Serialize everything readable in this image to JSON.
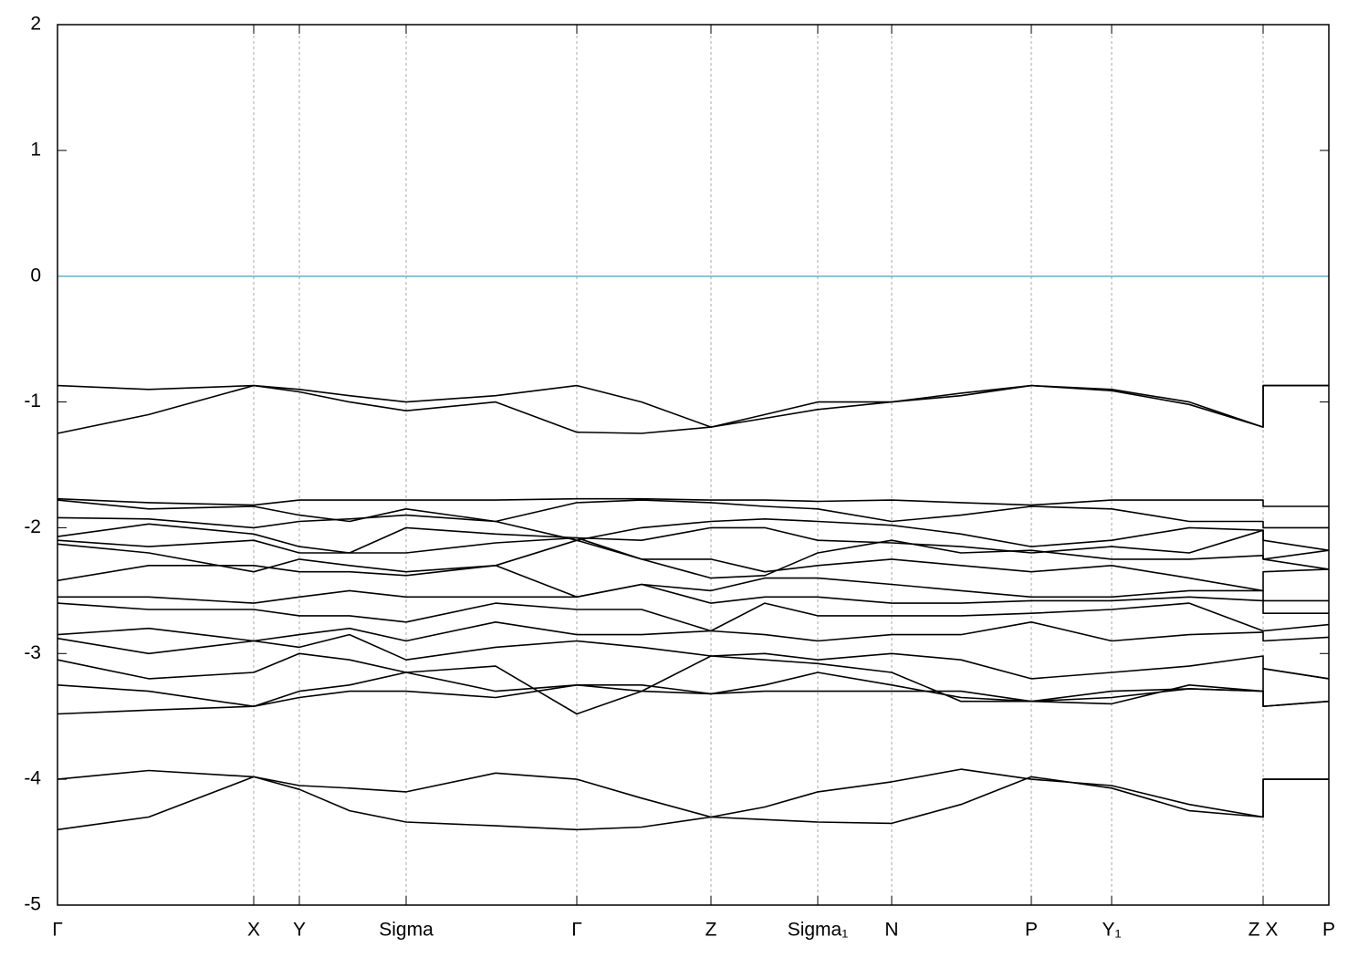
{
  "chart_data": {
    "type": "line",
    "x": [
      0,
      1.0,
      2.15,
      2.65,
      3.2,
      3.82,
      4.8,
      5.69,
      6.4,
      7.16,
      7.75,
      8.33,
      9.14,
      9.9,
      10.67,
      11.55,
      12.4,
      13.21,
      13.21,
      13.93
    ],
    "xlim": [
      0,
      13.93
    ],
    "xticks": [
      {
        "value": 0,
        "label": "Γ"
      },
      {
        "value": 2.15,
        "label": "X"
      },
      {
        "value": 2.65,
        "label": "Y"
      },
      {
        "value": 3.82,
        "label": "Sigma"
      },
      {
        "value": 5.69,
        "label": "Γ"
      },
      {
        "value": 7.16,
        "label": "Z"
      },
      {
        "value": 8.33,
        "label": "Sigma₁"
      },
      {
        "value": 9.14,
        "label": "N"
      },
      {
        "value": 10.67,
        "label": "P"
      },
      {
        "value": 11.55,
        "label": "Y₁"
      },
      {
        "value": 13.21,
        "label": "Z X"
      },
      {
        "value": 13.93,
        "label": "P"
      }
    ],
    "ylim": [
      -5,
      2
    ],
    "yticks": [
      -5,
      -4,
      -3,
      -2,
      -1,
      0,
      1,
      2
    ],
    "grid": true,
    "hline": {
      "value": 0,
      "color": "#5ab4c8"
    },
    "series": [
      {
        "color": "#000000",
        "values": [
          -0.87,
          -0.9,
          -0.87,
          -0.9,
          -0.95,
          -1.0,
          -0.95,
          -0.87,
          -1.0,
          -1.2,
          -1.1,
          -1.0,
          -1.0,
          -0.93,
          -0.87,
          -0.9,
          -1.0,
          -1.2,
          -0.87,
          -0.87
        ]
      },
      {
        "color": "#000000",
        "values": [
          -1.25,
          -1.1,
          -0.87,
          -0.92,
          -1.0,
          -1.07,
          -1.0,
          -1.24,
          -1.25,
          -1.2,
          -1.13,
          -1.06,
          -1.0,
          -0.95,
          -0.87,
          -0.91,
          -1.02,
          -1.2,
          -0.87,
          -0.87
        ]
      },
      {
        "color": "#000000",
        "values": [
          -1.77,
          -1.8,
          -1.82,
          -1.78,
          -1.78,
          -1.78,
          -1.78,
          -1.77,
          -1.77,
          -1.78,
          -1.78,
          -1.79,
          -1.78,
          -1.8,
          -1.82,
          -1.78,
          -1.78,
          -1.78,
          -1.83,
          -1.83
        ]
      },
      {
        "color": "#000000",
        "values": [
          -1.78,
          -1.85,
          -1.83,
          -1.9,
          -1.95,
          -1.85,
          -1.95,
          -1.8,
          -1.78,
          -1.8,
          -1.83,
          -1.85,
          -1.95,
          -1.9,
          -1.83,
          -1.85,
          -1.95,
          -1.95,
          -2.0,
          -2.0
        ]
      },
      {
        "color": "#000000",
        "values": [
          -1.92,
          -1.93,
          -2.0,
          -1.95,
          -1.93,
          -1.9,
          -1.95,
          -2.1,
          -2.0,
          -1.95,
          -1.93,
          -1.95,
          -1.98,
          -2.05,
          -2.15,
          -2.1,
          -2.0,
          -2.02,
          -2.1,
          -2.18
        ]
      },
      {
        "color": "#000000",
        "values": [
          -2.07,
          -1.97,
          -2.05,
          -2.15,
          -2.2,
          -2.0,
          -2.05,
          -2.08,
          -2.1,
          -2.0,
          -2.0,
          -2.1,
          -2.12,
          -2.15,
          -2.2,
          -2.15,
          -2.2,
          -2.02,
          -2.25,
          -2.18
        ]
      },
      {
        "color": "#000000",
        "values": [
          -2.1,
          -2.15,
          -2.1,
          -2.2,
          -2.2,
          -2.2,
          -2.12,
          -2.08,
          -2.25,
          -2.4,
          -2.38,
          -2.2,
          -2.1,
          -2.2,
          -2.18,
          -2.25,
          -2.25,
          -2.22,
          -2.25,
          -2.33
        ]
      },
      {
        "color": "#000000",
        "values": [
          -2.13,
          -2.2,
          -2.35,
          -2.25,
          -2.3,
          -2.35,
          -2.3,
          -2.1,
          -2.25,
          -2.25,
          -2.35,
          -2.3,
          -2.25,
          -2.3,
          -2.35,
          -2.3,
          -2.4,
          -2.5,
          -2.35,
          -2.33
        ]
      },
      {
        "color": "#000000",
        "values": [
          -2.42,
          -2.3,
          -2.3,
          -2.35,
          -2.35,
          -2.38,
          -2.3,
          -2.55,
          -2.45,
          -2.5,
          -2.4,
          -2.4,
          -2.45,
          -2.5,
          -2.55,
          -2.55,
          -2.5,
          -2.5,
          -2.58,
          -2.58
        ]
      },
      {
        "color": "#000000",
        "values": [
          -2.55,
          -2.55,
          -2.6,
          -2.55,
          -2.5,
          -2.55,
          -2.55,
          -2.55,
          -2.45,
          -2.6,
          -2.55,
          -2.55,
          -2.6,
          -2.6,
          -2.58,
          -2.58,
          -2.55,
          -2.58,
          -2.68,
          -2.68
        ]
      },
      {
        "color": "#000000",
        "values": [
          -2.6,
          -2.65,
          -2.65,
          -2.7,
          -2.7,
          -2.75,
          -2.6,
          -2.65,
          -2.65,
          -2.82,
          -2.6,
          -2.7,
          -2.7,
          -2.7,
          -2.68,
          -2.65,
          -2.6,
          -2.82,
          -2.82,
          -2.77
        ]
      },
      {
        "color": "#000000",
        "values": [
          -2.85,
          -2.8,
          -2.9,
          -2.85,
          -2.8,
          -2.9,
          -2.75,
          -2.85,
          -2.85,
          -2.82,
          -2.85,
          -2.9,
          -2.85,
          -2.85,
          -2.75,
          -2.9,
          -2.85,
          -2.83,
          -2.9,
          -2.87
        ]
      },
      {
        "color": "#000000",
        "values": [
          -2.88,
          -3.0,
          -2.9,
          -2.95,
          -2.85,
          -3.05,
          -2.95,
          -2.9,
          -2.95,
          -3.02,
          -3.0,
          -3.05,
          -3.0,
          -3.05,
          -3.2,
          -3.15,
          -3.1,
          -3.02,
          -3.12,
          -3.2
        ]
      },
      {
        "color": "#000000",
        "values": [
          -3.05,
          -3.2,
          -3.15,
          -3.0,
          -3.05,
          -3.15,
          -3.3,
          -3.25,
          -3.25,
          -3.32,
          -3.25,
          -3.15,
          -3.25,
          -3.35,
          -3.38,
          -3.3,
          -3.28,
          -3.3,
          -3.12,
          -3.2
        ]
      },
      {
        "color": "#000000",
        "values": [
          -3.25,
          -3.3,
          -3.42,
          -3.35,
          -3.3,
          -3.3,
          -3.35,
          -3.25,
          -3.3,
          -3.32,
          -3.3,
          -3.3,
          -3.3,
          -3.3,
          -3.38,
          -3.4,
          -3.25,
          -3.3,
          -3.42,
          -3.38
        ]
      },
      {
        "color": "#000000",
        "values": [
          -3.48,
          -3.45,
          -3.42,
          -3.3,
          -3.25,
          -3.15,
          -3.1,
          -3.48,
          -3.3,
          -3.02,
          -3.05,
          -3.08,
          -3.15,
          -3.38,
          -3.38,
          -3.35,
          -3.28,
          -3.3,
          -3.42,
          -3.38
        ]
      },
      {
        "color": "#000000",
        "values": [
          -4.0,
          -3.93,
          -3.98,
          -4.05,
          -4.07,
          -4.1,
          -3.95,
          -4.0,
          -4.15,
          -4.3,
          -4.22,
          -4.1,
          -4.02,
          -3.92,
          -4.0,
          -4.05,
          -4.2,
          -4.3,
          -4.0,
          -4.0
        ]
      },
      {
        "color": "#000000",
        "values": [
          -4.4,
          -4.3,
          -3.98,
          -4.08,
          -4.25,
          -4.34,
          -4.37,
          -4.4,
          -4.38,
          -4.3,
          -4.32,
          -4.34,
          -4.35,
          -4.2,
          -3.98,
          -4.07,
          -4.25,
          -4.3,
          -4.0,
          -4.0
        ]
      }
    ]
  }
}
